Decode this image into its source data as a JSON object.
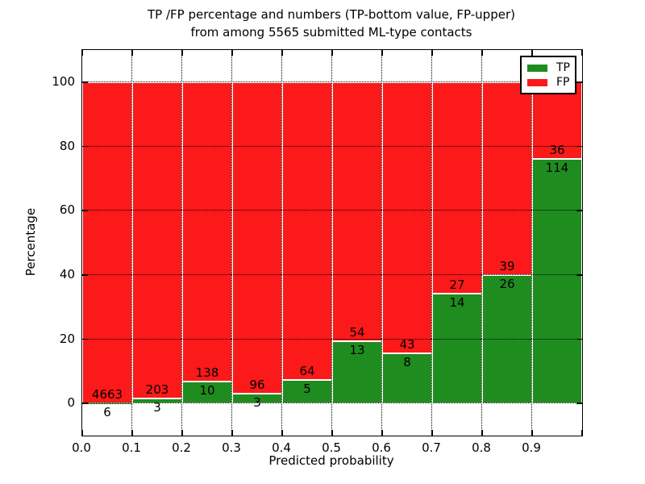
{
  "title": {
    "line1": "TP /FP percentage and numbers (TP-bottom value, FP-upper)",
    "line2": "from among 5565 submitted ML-type contacts"
  },
  "axes": {
    "xlabel": "Predicted probability",
    "ylabel": "Percentage",
    "xtick_labels": [
      "0.0",
      "0.1",
      "0.2",
      "0.3",
      "0.4",
      "0.5",
      "0.6",
      "0.7",
      "0.8",
      "0.9"
    ],
    "ytick_labels": [
      "0",
      "20",
      "40",
      "60",
      "80",
      "100"
    ],
    "ytick_values": [
      0,
      20,
      40,
      60,
      80,
      100
    ],
    "ylim": [
      -10,
      110
    ],
    "xlim": [
      0,
      1
    ],
    "grid_style": "dotted"
  },
  "legend": {
    "position": "upper right",
    "items": [
      {
        "label": "TP",
        "color": "#1f8c1f"
      },
      {
        "label": "FP",
        "color": "#fb1919"
      }
    ]
  },
  "chart_data": {
    "type": "bar",
    "stacked": true,
    "title": "TP /FP percentage and numbers (TP-bottom value, FP-upper) from among 5565 submitted ML-type contacts",
    "xlabel": "Predicted probability",
    "ylabel": "Percentage",
    "xlim": [
      0,
      1
    ],
    "ylim": [
      -10,
      110
    ],
    "bin_width": 0.1,
    "total_contacts": 5565,
    "grid": true,
    "legend_position": "upper right",
    "bar_value_labels": "counts (TP below boundary, FP above boundary)",
    "bins": [
      {
        "x_start": 0.0,
        "x_end": 0.1,
        "tp": 6,
        "fp": 4663,
        "tp_pct": 0.13,
        "fp_pct": 99.87
      },
      {
        "x_start": 0.1,
        "x_end": 0.2,
        "tp": 3,
        "fp": 203,
        "tp_pct": 1.46,
        "fp_pct": 98.54
      },
      {
        "x_start": 0.2,
        "x_end": 0.3,
        "tp": 10,
        "fp": 138,
        "tp_pct": 6.76,
        "fp_pct": 93.24
      },
      {
        "x_start": 0.3,
        "x_end": 0.4,
        "tp": 3,
        "fp": 96,
        "tp_pct": 3.03,
        "fp_pct": 96.97
      },
      {
        "x_start": 0.4,
        "x_end": 0.5,
        "tp": 5,
        "fp": 64,
        "tp_pct": 7.25,
        "fp_pct": 92.75
      },
      {
        "x_start": 0.5,
        "x_end": 0.6,
        "tp": 13,
        "fp": 54,
        "tp_pct": 19.4,
        "fp_pct": 80.6
      },
      {
        "x_start": 0.6,
        "x_end": 0.7,
        "tp": 8,
        "fp": 43,
        "tp_pct": 15.69,
        "fp_pct": 84.31
      },
      {
        "x_start": 0.7,
        "x_end": 0.8,
        "tp": 14,
        "fp": 27,
        "tp_pct": 34.15,
        "fp_pct": 65.85
      },
      {
        "x_start": 0.8,
        "x_end": 0.9,
        "tp": 26,
        "fp": 39,
        "tp_pct": 40.0,
        "fp_pct": 60.0
      },
      {
        "x_start": 0.9,
        "x_end": 1.0,
        "tp": 114,
        "fp": 36,
        "tp_pct": 76.0,
        "fp_pct": 24.0
      }
    ],
    "series": [
      {
        "name": "TP",
        "color": "#1f8c1f",
        "counts": [
          6,
          3,
          10,
          3,
          5,
          13,
          8,
          14,
          26,
          114
        ]
      },
      {
        "name": "FP",
        "color": "#fb1919",
        "counts": [
          4663,
          203,
          138,
          96,
          64,
          54,
          43,
          27,
          39,
          36
        ]
      }
    ]
  }
}
